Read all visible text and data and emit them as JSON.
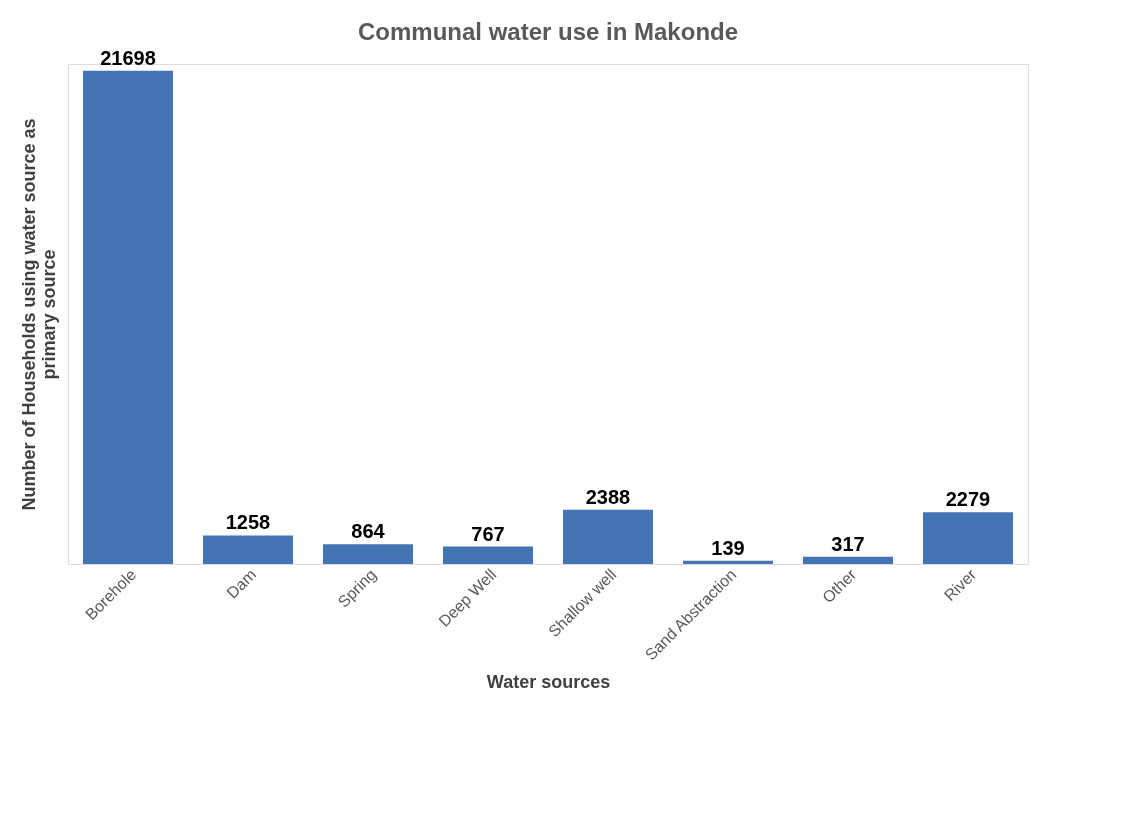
{
  "chart_data": {
    "type": "bar",
    "title": "Communal water use in Makonde",
    "xlabel": "Water sources",
    "ylabel": "Number of Households using water source as primary source",
    "categories": [
      "Borehole",
      "Dam",
      "Spring",
      "Deep Well",
      "Shallow well",
      "Sand Abstraction",
      "Other",
      "River"
    ],
    "values": [
      21698,
      1258,
      864,
      767,
      2388,
      139,
      317,
      2279
    ],
    "color": "#4375b5",
    "data_labels": true,
    "grid": false,
    "tick_labels": "x"
  }
}
